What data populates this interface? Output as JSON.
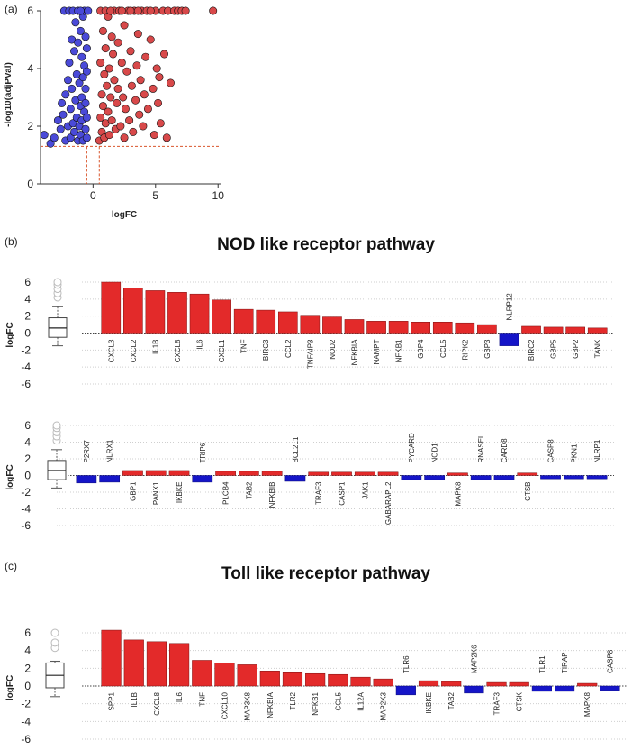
{
  "panels": {
    "a": "(a)",
    "b": "(b)",
    "c": "(c)"
  },
  "colors": {
    "up": "#e32a2a",
    "down": "#1515c8",
    "grid": "#cfcfcf",
    "threshold": "#d9552c",
    "point_up": "#d8494a",
    "point_down": "#4a4ad8"
  },
  "chart_data": [
    {
      "id": "volcano",
      "type": "scatter",
      "xlabel": "logFC",
      "ylabel": "-log10(adjPVal)",
      "xlim": [
        -4.2,
        10.2
      ],
      "ylim": [
        0,
        6
      ],
      "xticks": [
        0,
        5,
        10
      ],
      "yticks": [
        0,
        2,
        4,
        6
      ],
      "thresholds": {
        "x": [
          -0.5,
          0.5
        ],
        "y": 1.3
      },
      "points_down": [
        [
          -3.9,
          1.7
        ],
        [
          -3.4,
          1.4
        ],
        [
          -3.1,
          1.6
        ],
        [
          -2.8,
          2.2
        ],
        [
          -2.6,
          1.9
        ],
        [
          -2.5,
          2.8
        ],
        [
          -2.4,
          2.4
        ],
        [
          -2.2,
          1.5
        ],
        [
          -2.2,
          3.1
        ],
        [
          -2.0,
          3.6
        ],
        [
          -2.0,
          2.0
        ],
        [
          -1.9,
          4.2
        ],
        [
          -1.8,
          2.6
        ],
        [
          -1.8,
          1.6
        ],
        [
          -1.7,
          5.0
        ],
        [
          -1.7,
          3.3
        ],
        [
          -1.6,
          2.1
        ],
        [
          -1.5,
          4.6
        ],
        [
          -1.5,
          1.8
        ],
        [
          -1.4,
          2.9
        ],
        [
          -1.4,
          5.6
        ],
        [
          -1.3,
          3.8
        ],
        [
          -1.3,
          2.3
        ],
        [
          -1.2,
          1.5
        ],
        [
          -1.2,
          4.9
        ],
        [
          -1.1,
          3.5
        ],
        [
          -1.1,
          2.0
        ],
        [
          -1.0,
          5.3
        ],
        [
          -1.0,
          2.7
        ],
        [
          -1.0,
          1.7
        ],
        [
          -0.9,
          4.4
        ],
        [
          -0.9,
          3.0
        ],
        [
          -0.9,
          2.2
        ],
        [
          -0.8,
          5.8
        ],
        [
          -0.8,
          3.7
        ],
        [
          -0.8,
          1.5
        ],
        [
          -0.7,
          4.1
        ],
        [
          -0.7,
          2.5
        ],
        [
          -0.7,
          6.0
        ],
        [
          -0.6,
          3.3
        ],
        [
          -0.6,
          1.9
        ],
        [
          -0.6,
          5.1
        ],
        [
          -0.6,
          2.8
        ],
        [
          -0.5,
          4.7
        ],
        [
          -0.5,
          3.9
        ],
        [
          -0.5,
          1.6
        ],
        [
          -0.5,
          2.3
        ],
        [
          -2.3,
          6.0
        ],
        [
          -1.9,
          6.0
        ],
        [
          -1.6,
          6.0
        ],
        [
          -1.2,
          6.0
        ],
        [
          -1.0,
          6.0
        ],
        [
          -0.4,
          6.0
        ]
      ],
      "points_up": [
        [
          0.5,
          1.5
        ],
        [
          0.6,
          2.3
        ],
        [
          0.6,
          4.2
        ],
        [
          0.6,
          6.0
        ],
        [
          0.7,
          3.1
        ],
        [
          0.7,
          1.8
        ],
        [
          0.8,
          5.3
        ],
        [
          0.8,
          2.7
        ],
        [
          0.9,
          3.8
        ],
        [
          0.9,
          1.6
        ],
        [
          1.0,
          4.7
        ],
        [
          1.0,
          2.1
        ],
        [
          1.0,
          6.0
        ],
        [
          1.1,
          3.4
        ],
        [
          1.2,
          5.8
        ],
        [
          1.2,
          2.5
        ],
        [
          1.3,
          4.0
        ],
        [
          1.3,
          1.7
        ],
        [
          1.4,
          3.0
        ],
        [
          1.5,
          5.1
        ],
        [
          1.5,
          2.2
        ],
        [
          1.6,
          4.5
        ],
        [
          1.7,
          3.6
        ],
        [
          1.7,
          6.0
        ],
        [
          1.8,
          1.9
        ],
        [
          1.9,
          2.8
        ],
        [
          2.0,
          4.9
        ],
        [
          2.0,
          3.3
        ],
        [
          2.1,
          6.0
        ],
        [
          2.2,
          2.0
        ],
        [
          2.3,
          4.2
        ],
        [
          2.4,
          3.0
        ],
        [
          2.5,
          5.5
        ],
        [
          2.5,
          1.6
        ],
        [
          2.6,
          2.6
        ],
        [
          2.7,
          3.9
        ],
        [
          2.8,
          6.0
        ],
        [
          2.9,
          2.2
        ],
        [
          3.0,
          4.6
        ],
        [
          3.1,
          3.4
        ],
        [
          3.2,
          1.8
        ],
        [
          3.3,
          6.0
        ],
        [
          3.4,
          2.9
        ],
        [
          3.5,
          4.1
        ],
        [
          3.6,
          5.2
        ],
        [
          3.7,
          2.4
        ],
        [
          3.8,
          3.6
        ],
        [
          3.9,
          6.0
        ],
        [
          4.0,
          2.0
        ],
        [
          4.1,
          3.1
        ],
        [
          4.2,
          4.4
        ],
        [
          4.3,
          6.0
        ],
        [
          4.4,
          2.6
        ],
        [
          4.6,
          5.0
        ],
        [
          4.8,
          3.3
        ],
        [
          4.9,
          1.7
        ],
        [
          5.0,
          6.0
        ],
        [
          5.1,
          4.0
        ],
        [
          5.2,
          2.8
        ],
        [
          5.3,
          3.7
        ],
        [
          5.4,
          2.1
        ],
        [
          5.6,
          6.0
        ],
        [
          5.7,
          4.5
        ],
        [
          5.9,
          1.6
        ],
        [
          6.0,
          6.0
        ],
        [
          6.2,
          3.5
        ],
        [
          6.5,
          6.0
        ],
        [
          6.8,
          6.0
        ],
        [
          7.1,
          6.0
        ],
        [
          7.4,
          6.0
        ],
        [
          9.6,
          6.0
        ],
        [
          1.4,
          6.0
        ],
        [
          2.3,
          6.0
        ],
        [
          3.0,
          6.0
        ],
        [
          3.6,
          6.0
        ],
        [
          4.6,
          6.0
        ]
      ]
    },
    {
      "id": "nod1",
      "type": "bar",
      "title": "NOD like receptor pathway",
      "ylabel": "logFC",
      "ylim": [
        -6,
        6
      ],
      "yticks": [
        -6,
        -4,
        -2,
        0,
        2,
        4,
        6
      ],
      "box": {
        "min": -1.5,
        "q1": -0.5,
        "median": 0.6,
        "q3": 1.8,
        "max": 3.1,
        "outliers": [
          4.2,
          4.7,
          5.2,
          5.7,
          6.0
        ]
      },
      "categories": [
        "CXCL3",
        "CXCL2",
        "IL1B",
        "CXCL8",
        "IL6",
        "CXCL1",
        "TNF",
        "BIRC3",
        "CCL2",
        "TNFAIP3",
        "NOD2",
        "NFKBIA",
        "NAMPT",
        "NFKB1",
        "GBP4",
        "CCL5",
        "RIPK2",
        "GBP3",
        "NLRP12",
        "BIRC2",
        "GBP5",
        "GBP2",
        "TANK"
      ],
      "values": [
        6.0,
        5.3,
        5.0,
        4.8,
        4.6,
        3.9,
        2.8,
        2.7,
        2.5,
        2.1,
        1.9,
        1.6,
        1.4,
        1.4,
        1.3,
        1.3,
        1.2,
        1.0,
        -1.5,
        0.8,
        0.7,
        0.7,
        0.6
      ]
    },
    {
      "id": "nod2",
      "type": "bar",
      "ylabel": "logFC",
      "ylim": [
        -6,
        6
      ],
      "yticks": [
        -6,
        -4,
        -2,
        0,
        2,
        4,
        6
      ],
      "box": {
        "min": -1.5,
        "q1": -0.5,
        "median": 0.6,
        "q3": 1.8,
        "max": 3.1,
        "outliers": [
          4.2,
          4.7,
          5.2,
          5.7,
          6.0
        ]
      },
      "categories": [
        "P2RX7",
        "NLRX1",
        "GBP1",
        "PANX1",
        "IKBKE",
        "TRIP6",
        "PLCB4",
        "TAB2",
        "NFKBIB",
        "BCL2L1",
        "TRAF3",
        "CASP1",
        "JAK1",
        "GABARAPL2",
        "PYCARD",
        "NOD1",
        "MAPK8",
        "RNASEL",
        "CARD8",
        "CTSB",
        "CASP8",
        "PKN1",
        "NLRP1"
      ],
      "values": [
        -0.9,
        -0.8,
        0.6,
        0.6,
        0.6,
        -0.8,
        0.5,
        0.5,
        0.5,
        -0.7,
        0.4,
        0.4,
        0.4,
        0.4,
        -0.5,
        -0.5,
        0.3,
        -0.5,
        -0.5,
        0.3,
        -0.4,
        -0.4,
        -0.4
      ]
    },
    {
      "id": "toll",
      "type": "bar",
      "title": "Toll like receptor pathway",
      "ylabel": "logFC",
      "ylim": [
        -6,
        6
      ],
      "yticks": [
        -6,
        -4,
        -2,
        0,
        2,
        4,
        6
      ],
      "box": {
        "min": -1.2,
        "q1": -0.2,
        "median": 1.2,
        "q3": 2.6,
        "max": 2.8,
        "outliers": [
          4.3,
          4.9,
          6.0
        ]
      },
      "categories": [
        "SPP1",
        "IL1B",
        "CXCL8",
        "IL6",
        "TNF",
        "CXCL10",
        "MAP3K8",
        "NFKBIA",
        "TLR2",
        "NFKB1",
        "CCL5",
        "IL12A",
        "MAP2K3",
        "TLR6",
        "IKBKE",
        "TAB2",
        "MAP2K6",
        "TRAF3",
        "CTSK",
        "TLR1",
        "TIRAP",
        "MAPK8",
        "CASP8"
      ],
      "values": [
        6.3,
        5.2,
        5.0,
        4.8,
        2.9,
        2.6,
        2.4,
        1.7,
        1.5,
        1.4,
        1.3,
        1.0,
        0.8,
        -1.0,
        0.6,
        0.5,
        -0.8,
        0.4,
        0.4,
        -0.6,
        -0.6,
        0.3,
        -0.5
      ]
    }
  ]
}
